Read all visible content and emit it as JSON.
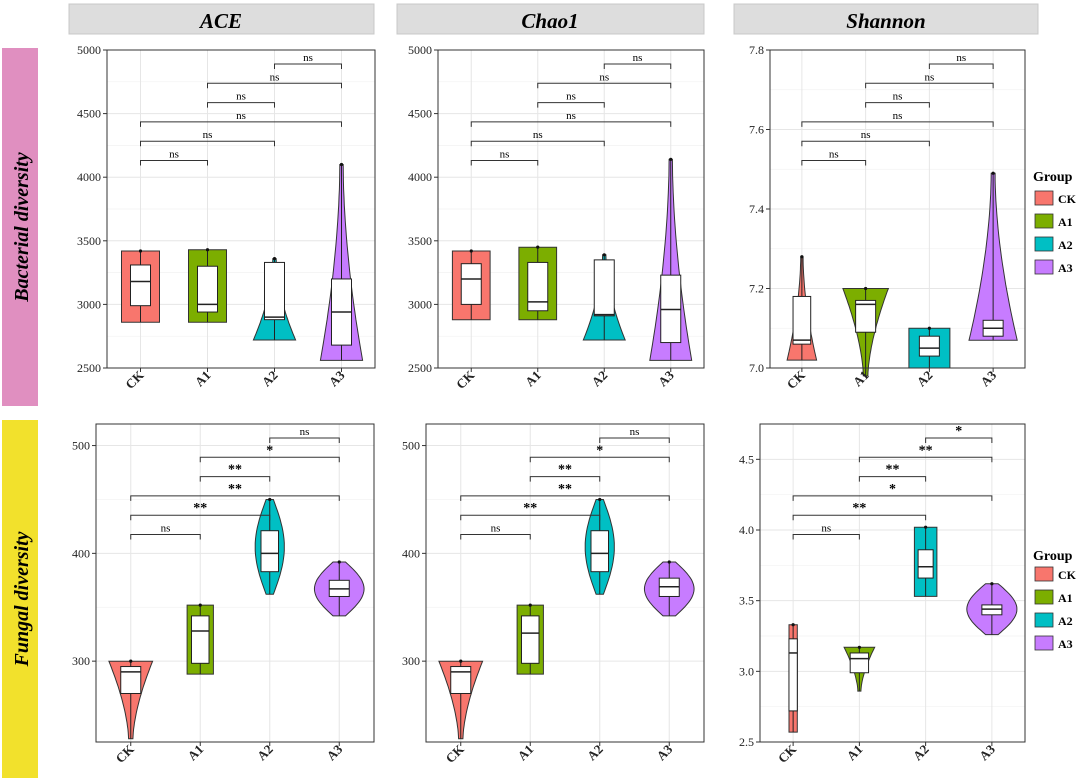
{
  "colors": {
    "CK": "#F8766D",
    "A1": "#7CAE00",
    "A2": "#00BFC4",
    "A3": "#C77CFF",
    "bacterial_band": "#E08FC0",
    "fungal_band": "#F2E12C",
    "header_bg": "#DDDDDD"
  },
  "column_titles": [
    "ACE",
    "Chao1",
    "Shannon"
  ],
  "row_labels": [
    "Bacterial diversity",
    "Fungal diversity"
  ],
  "legend": {
    "title": "Group",
    "entries": [
      "CK",
      "A1",
      "A2",
      "A3"
    ]
  },
  "chart_data": [
    {
      "id": "bact-ace",
      "type": "violin",
      "title": "ACE",
      "ylabel": "",
      "categories": [
        "CK",
        "A1",
        "A2",
        "A3"
      ],
      "ylim": [
        2500,
        5000
      ],
      "yticks": [
        2500,
        3000,
        3500,
        4000,
        4500,
        5000
      ],
      "groups": [
        {
          "name": "CK",
          "min": 2860,
          "q1": 2990,
          "median": 3180,
          "q3": 3310,
          "max": 3420,
          "shape": "flat",
          "widthFactor": 0.75
        },
        {
          "name": "A1",
          "min": 2860,
          "q1": 2940,
          "median": 3000,
          "q3": 3300,
          "max": 3430,
          "shape": "flat",
          "widthFactor": 0.75
        },
        {
          "name": "A2",
          "min": 2720,
          "q1": 2880,
          "median": 2900,
          "q3": 3330,
          "max": 3360,
          "shape": "lowheavy",
          "widthFactor": 0.75
        },
        {
          "name": "A3",
          "min": 2560,
          "q1": 2680,
          "median": 2940,
          "q3": 3200,
          "max": 4100,
          "shape": "lowheavy",
          "widthFactor": 0.75
        }
      ],
      "comparisons": [
        {
          "g1": "CK",
          "g2": "A1",
          "label": "ns"
        },
        {
          "g1": "CK",
          "g2": "A2",
          "label": "ns"
        },
        {
          "g1": "CK",
          "g2": "A3",
          "label": "ns"
        },
        {
          "g1": "A1",
          "g2": "A2",
          "label": "ns"
        },
        {
          "g1": "A1",
          "g2": "A3",
          "label": "ns"
        },
        {
          "g1": "A2",
          "g2": "A3",
          "label": "ns"
        }
      ]
    },
    {
      "id": "bact-chao1",
      "type": "violin",
      "title": "Chao1",
      "ylabel": "",
      "categories": [
        "CK",
        "A1",
        "A2",
        "A3"
      ],
      "ylim": [
        2500,
        5000
      ],
      "yticks": [
        2500,
        3000,
        3500,
        4000,
        4500,
        5000
      ],
      "groups": [
        {
          "name": "CK",
          "min": 2880,
          "q1": 3000,
          "median": 3200,
          "q3": 3320,
          "max": 3420,
          "shape": "flat",
          "widthFactor": 0.75
        },
        {
          "name": "A1",
          "min": 2880,
          "q1": 2950,
          "median": 3020,
          "q3": 3330,
          "max": 3450,
          "shape": "flat",
          "widthFactor": 0.75
        },
        {
          "name": "A2",
          "min": 2720,
          "q1": 2910,
          "median": 2920,
          "q3": 3350,
          "max": 3390,
          "shape": "lowheavy",
          "widthFactor": 0.75
        },
        {
          "name": "A3",
          "min": 2560,
          "q1": 2700,
          "median": 2960,
          "q3": 3230,
          "max": 4140,
          "shape": "lowheavy",
          "widthFactor": 0.75
        }
      ],
      "comparisons": [
        {
          "g1": "CK",
          "g2": "A1",
          "label": "ns"
        },
        {
          "g1": "CK",
          "g2": "A2",
          "label": "ns"
        },
        {
          "g1": "CK",
          "g2": "A3",
          "label": "ns"
        },
        {
          "g1": "A1",
          "g2": "A2",
          "label": "ns"
        },
        {
          "g1": "A1",
          "g2": "A3",
          "label": "ns"
        },
        {
          "g1": "A2",
          "g2": "A3",
          "label": "ns"
        }
      ]
    },
    {
      "id": "bact-shannon",
      "type": "violin",
      "title": "Shannon",
      "ylabel": "",
      "categories": [
        "CK",
        "A1",
        "A2",
        "A3"
      ],
      "ylim": [
        7.0,
        7.8
      ],
      "yticks": [
        7.0,
        7.2,
        7.4,
        7.6,
        7.8
      ],
      "groups": [
        {
          "name": "CK",
          "min": 7.02,
          "q1": 7.06,
          "median": 7.07,
          "q3": 7.18,
          "max": 7.28,
          "shape": "lowheavy",
          "widthFactor": 0.55
        },
        {
          "name": "A1",
          "min": 6.98,
          "q1": 7.09,
          "median": 7.16,
          "q3": 7.17,
          "max": 7.2,
          "shape": "highheavy",
          "widthFactor": 0.85
        },
        {
          "name": "A2",
          "min": 7.0,
          "q1": 7.03,
          "median": 7.05,
          "q3": 7.08,
          "max": 7.1,
          "shape": "flat",
          "widthFactor": 0.85
        },
        {
          "name": "A3",
          "min": 7.07,
          "q1": 7.08,
          "median": 7.1,
          "q3": 7.12,
          "max": 7.49,
          "shape": "lowheavy",
          "widthFactor": 0.9
        }
      ],
      "comparisons": [
        {
          "g1": "CK",
          "g2": "A1",
          "label": "ns"
        },
        {
          "g1": "CK",
          "g2": "A2",
          "label": "ns"
        },
        {
          "g1": "CK",
          "g2": "A3",
          "label": "ns"
        },
        {
          "g1": "A1",
          "g2": "A2",
          "label": "ns"
        },
        {
          "g1": "A1",
          "g2": "A3",
          "label": "ns"
        },
        {
          "g1": "A2",
          "g2": "A3",
          "label": "ns"
        }
      ]
    },
    {
      "id": "fung-ace",
      "type": "violin",
      "title": "ACE",
      "ylabel": "",
      "categories": [
        "CK",
        "A1",
        "A2",
        "A3"
      ],
      "ylim": [
        225,
        520
      ],
      "yticks": [
        300,
        400,
        500
      ],
      "groups": [
        {
          "name": "CK",
          "min": 228,
          "q1": 270,
          "median": 290,
          "q3": 295,
          "max": 300,
          "shape": "highheavy",
          "widthFactor": 0.75
        },
        {
          "name": "A1",
          "min": 288,
          "q1": 298,
          "median": 328,
          "q3": 342,
          "max": 352,
          "shape": "flat",
          "widthFactor": 0.5
        },
        {
          "name": "A2",
          "min": 362,
          "q1": 383,
          "median": 400,
          "q3": 421,
          "max": 450,
          "shape": "center",
          "widthFactor": 0.5
        },
        {
          "name": "A3",
          "min": 342,
          "q1": 360,
          "median": 367,
          "q3": 375,
          "max": 392,
          "shape": "center",
          "widthFactor": 0.85
        }
      ],
      "comparisons": [
        {
          "g1": "CK",
          "g2": "A1",
          "label": "ns"
        },
        {
          "g1": "CK",
          "g2": "A2",
          "label": "**"
        },
        {
          "g1": "CK",
          "g2": "A3",
          "label": "**"
        },
        {
          "g1": "A1",
          "g2": "A2",
          "label": "**"
        },
        {
          "g1": "A1",
          "g2": "A3",
          "label": "*"
        },
        {
          "g1": "A2",
          "g2": "A3",
          "label": "ns"
        }
      ]
    },
    {
      "id": "fung-chao1",
      "type": "violin",
      "title": "Chao1",
      "ylabel": "",
      "categories": [
        "CK",
        "A1",
        "A2",
        "A3"
      ],
      "ylim": [
        225,
        520
      ],
      "yticks": [
        300,
        400,
        500
      ],
      "groups": [
        {
          "name": "CK",
          "min": 228,
          "q1": 270,
          "median": 290,
          "q3": 295,
          "max": 300,
          "shape": "highheavy",
          "widthFactor": 0.75
        },
        {
          "name": "A1",
          "min": 288,
          "q1": 298,
          "median": 326,
          "q3": 342,
          "max": 352,
          "shape": "flat",
          "widthFactor": 0.5
        },
        {
          "name": "A2",
          "min": 362,
          "q1": 383,
          "median": 400,
          "q3": 421,
          "max": 450,
          "shape": "center",
          "widthFactor": 0.5
        },
        {
          "name": "A3",
          "min": 342,
          "q1": 360,
          "median": 369,
          "q3": 377,
          "max": 392,
          "shape": "center",
          "widthFactor": 0.85
        }
      ],
      "comparisons": [
        {
          "g1": "CK",
          "g2": "A1",
          "label": "ns"
        },
        {
          "g1": "CK",
          "g2": "A2",
          "label": "**"
        },
        {
          "g1": "CK",
          "g2": "A3",
          "label": "**"
        },
        {
          "g1": "A1",
          "g2": "A2",
          "label": "**"
        },
        {
          "g1": "A1",
          "g2": "A3",
          "label": "*"
        },
        {
          "g1": "A2",
          "g2": "A3",
          "label": "ns"
        }
      ]
    },
    {
      "id": "fung-shannon",
      "type": "violin",
      "title": "Shannon",
      "ylabel": "",
      "categories": [
        "CK",
        "A1",
        "A2",
        "A3"
      ],
      "ylim": [
        2.5,
        4.75
      ],
      "yticks": [
        2.5,
        3.0,
        3.5,
        4.0,
        4.5
      ],
      "groups": [
        {
          "name": "CK",
          "min": 2.57,
          "q1": 2.72,
          "median": 3.13,
          "q3": 3.23,
          "max": 3.33,
          "shape": "thin",
          "widthFactor": 0.25
        },
        {
          "name": "A1",
          "min": 2.86,
          "q1": 2.99,
          "median": 3.09,
          "q3": 3.13,
          "max": 3.17,
          "shape": "highheavy",
          "widthFactor": 0.55
        },
        {
          "name": "A2",
          "min": 3.53,
          "q1": 3.66,
          "median": 3.74,
          "q3": 3.86,
          "max": 4.02,
          "shape": "flat",
          "widthFactor": 0.45
        },
        {
          "name": "A3",
          "min": 3.26,
          "q1": 3.4,
          "median": 3.44,
          "q3": 3.47,
          "max": 3.62,
          "shape": "center",
          "widthFactor": 0.9
        }
      ],
      "comparisons": [
        {
          "g1": "CK",
          "g2": "A1",
          "label": "ns"
        },
        {
          "g1": "CK",
          "g2": "A2",
          "label": "**"
        },
        {
          "g1": "CK",
          "g2": "A3",
          "label": "*"
        },
        {
          "g1": "A1",
          "g2": "A2",
          "label": "**"
        },
        {
          "g1": "A1",
          "g2": "A3",
          "label": "**"
        },
        {
          "g1": "A2",
          "g2": "A3",
          "label": "*"
        }
      ]
    }
  ]
}
